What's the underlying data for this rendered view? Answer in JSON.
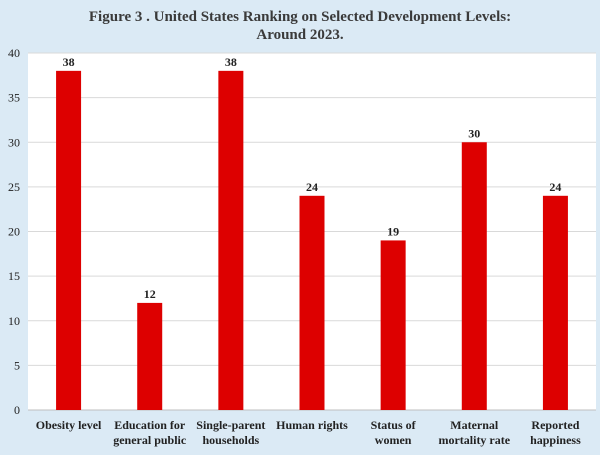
{
  "chart_data": {
    "type": "bar",
    "title_lines": [
      "Figure 3 . United States Ranking on Selected Development Levels:",
      "Around 2023."
    ],
    "categories": [
      [
        "Obesity level"
      ],
      [
        "Education for",
        "general public"
      ],
      [
        "Single-parent",
        "households"
      ],
      [
        "Human rights"
      ],
      [
        "Status of",
        "women"
      ],
      [
        "Maternal",
        "mortality rate"
      ],
      [
        "Reported",
        "happiness"
      ]
    ],
    "values": [
      38,
      12,
      38,
      24,
      19,
      30,
      24
    ],
    "ylim": [
      0,
      40
    ],
    "yticks": [
      0,
      5,
      10,
      15,
      20,
      25,
      30,
      35,
      40
    ],
    "grid": true,
    "legend": "none",
    "xlabel": "",
    "ylabel": "",
    "colors": {
      "bar": "#dd0000",
      "background": "#dbeaf5",
      "plot_area": "#ffffff",
      "grid": "#d9d9d9"
    }
  }
}
